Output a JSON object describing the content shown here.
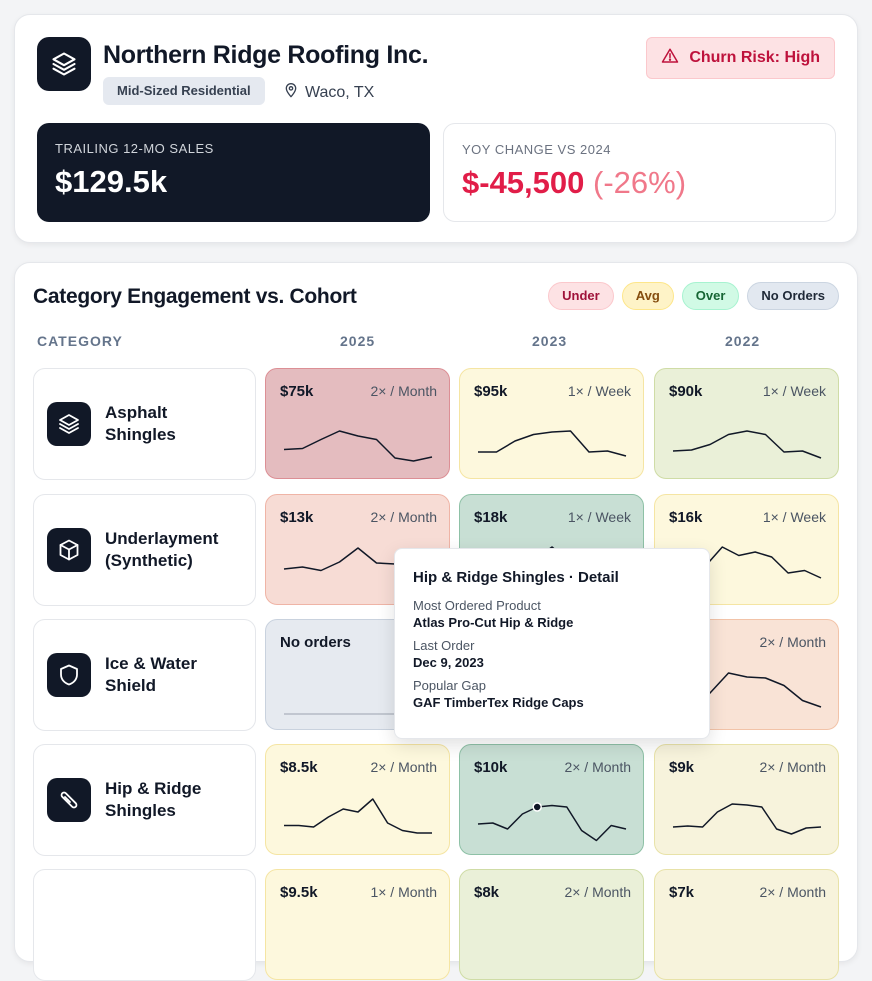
{
  "account": {
    "name": "Northern Ridge Roofing Inc.",
    "segment": "Mid-Sized Residential",
    "location": "Waco, TX",
    "risk_label": "Churn Risk: High",
    "logo_icon": "layers-icon",
    "location_icon": "map-pin-icon",
    "risk_icon": "alert-triangle-icon"
  },
  "kpis": {
    "ttm_label": "TRAILING 12-MO SALES",
    "ttm_value": "$129.5k",
    "yoy_label": "YOY CHANGE VS 2024",
    "yoy_value": "$-45,500",
    "yoy_pct": "(-26%)"
  },
  "matrix": {
    "title": "Category Engagement vs. Cohort",
    "legend": [
      "Under",
      "Avg",
      "Over",
      "No Orders"
    ],
    "headers": {
      "category": "CATEGORY",
      "years": [
        "2025",
        "2023",
        "2022"
      ]
    },
    "rows": [
      {
        "label_line1": "Asphalt",
        "label_line2": "Shingles",
        "icon": "layers-icon",
        "cells": [
          {
            "amount": "$75k",
            "freq": "2× / Month",
            "status": "under-strong",
            "spark": [
              0.35,
              0.37,
              0.55,
              0.72,
              0.62,
              0.55,
              0.18,
              0.12,
              0.2
            ]
          },
          {
            "amount": "$95k",
            "freq": "1× / Week",
            "status": "avg",
            "spark": [
              0.3,
              0.3,
              0.52,
              0.65,
              0.7,
              0.72,
              0.3,
              0.32,
              0.22
            ]
          },
          {
            "amount": "$90k",
            "freq": "1× / Week",
            "status": "over-soft",
            "spark": [
              0.32,
              0.34,
              0.45,
              0.65,
              0.72,
              0.65,
              0.3,
              0.32,
              0.18
            ]
          }
        ]
      },
      {
        "label_line1": "Underlayment",
        "label_line2": "(Synthetic)",
        "icon": "cube-icon",
        "cells": [
          {
            "amount": "$13k",
            "freq": "2× / Month",
            "status": "under",
            "spark": [
              0.48,
              0.52,
              0.45,
              0.62,
              0.9,
              0.6,
              0.58,
              0.5,
              0.4
            ]
          },
          {
            "amount": "$18k",
            "freq": "1× / Week",
            "status": "over",
            "spark": [
              0.5,
              0.52,
              0.5,
              0.65,
              0.92,
              0.6,
              0.55,
              0.4,
              0.35
            ]
          },
          {
            "amount": "$16k",
            "freq": "1× / Week",
            "status": "avg",
            "spark": [
              0.45,
              0.5,
              0.55,
              0.92,
              0.75,
              0.82,
              0.72,
              0.4,
              0.45,
              0.3
            ]
          }
        ]
      },
      {
        "label_line1": "Ice & Water",
        "label_line2": "Shield",
        "icon": "shield-icon",
        "cells": [
          {
            "amount": "No orders",
            "freq": "",
            "status": "none",
            "spark": []
          },
          {
            "amount": "",
            "freq": "",
            "status": "hidden",
            "spark": []
          },
          {
            "amount": "",
            "freq": "2× / Month",
            "status": "under-soft",
            "spark": [
              0.15,
              0.2,
              0.5,
              0.9,
              0.82,
              0.8,
              0.65,
              0.35,
              0.22
            ]
          }
        ]
      },
      {
        "label_line1": "Hip & Ridge",
        "label_line2": "Shingles",
        "icon": "nail-icon",
        "cells": [
          {
            "amount": "$8.5k",
            "freq": "2× / Month",
            "status": "avg",
            "spark": [
              0.35,
              0.35,
              0.32,
              0.52,
              0.68,
              0.62,
              0.88,
              0.4,
              0.25,
              0.2,
              0.2
            ]
          },
          {
            "amount": "$10k",
            "freq": "2× / Month",
            "status": "over",
            "spark": [
              0.38,
              0.4,
              0.28,
              0.58,
              0.72,
              0.75,
              0.72,
              0.25,
              0.05,
              0.35,
              0.28
            ],
            "marker_index": 4
          },
          {
            "amount": "$9k",
            "freq": "2× / Month",
            "status": "avg-soft",
            "spark": [
              0.32,
              0.34,
              0.32,
              0.62,
              0.78,
              0.76,
              0.72,
              0.28,
              0.18,
              0.3,
              0.32
            ]
          }
        ]
      },
      {
        "label_line1": "",
        "label_line2": "",
        "icon": "",
        "cells": [
          {
            "amount": "$9.5k",
            "freq": "1× / Month",
            "status": "avg",
            "spark": []
          },
          {
            "amount": "$8k",
            "freq": "2× / Month",
            "status": "over-soft",
            "spark": []
          },
          {
            "amount": "$7k",
            "freq": "2× / Month",
            "status": "avg-soft",
            "spark": []
          }
        ]
      }
    ]
  },
  "tooltip": {
    "title": "Hip & Ridge Shingles · Detail",
    "most_ordered_label": "Most Ordered Product",
    "most_ordered_value": "Atlas Pro-Cut Hip & Ridge",
    "last_order_label": "Last Order",
    "last_order_value": "Dec 9, 2023",
    "gap_label": "Popular Gap",
    "gap_value": "GAF TimberTex Ridge Caps"
  },
  "colors": {
    "accent_dark": "#111827",
    "negative": "#e11d48",
    "risk_bg": "#fde2e4"
  }
}
